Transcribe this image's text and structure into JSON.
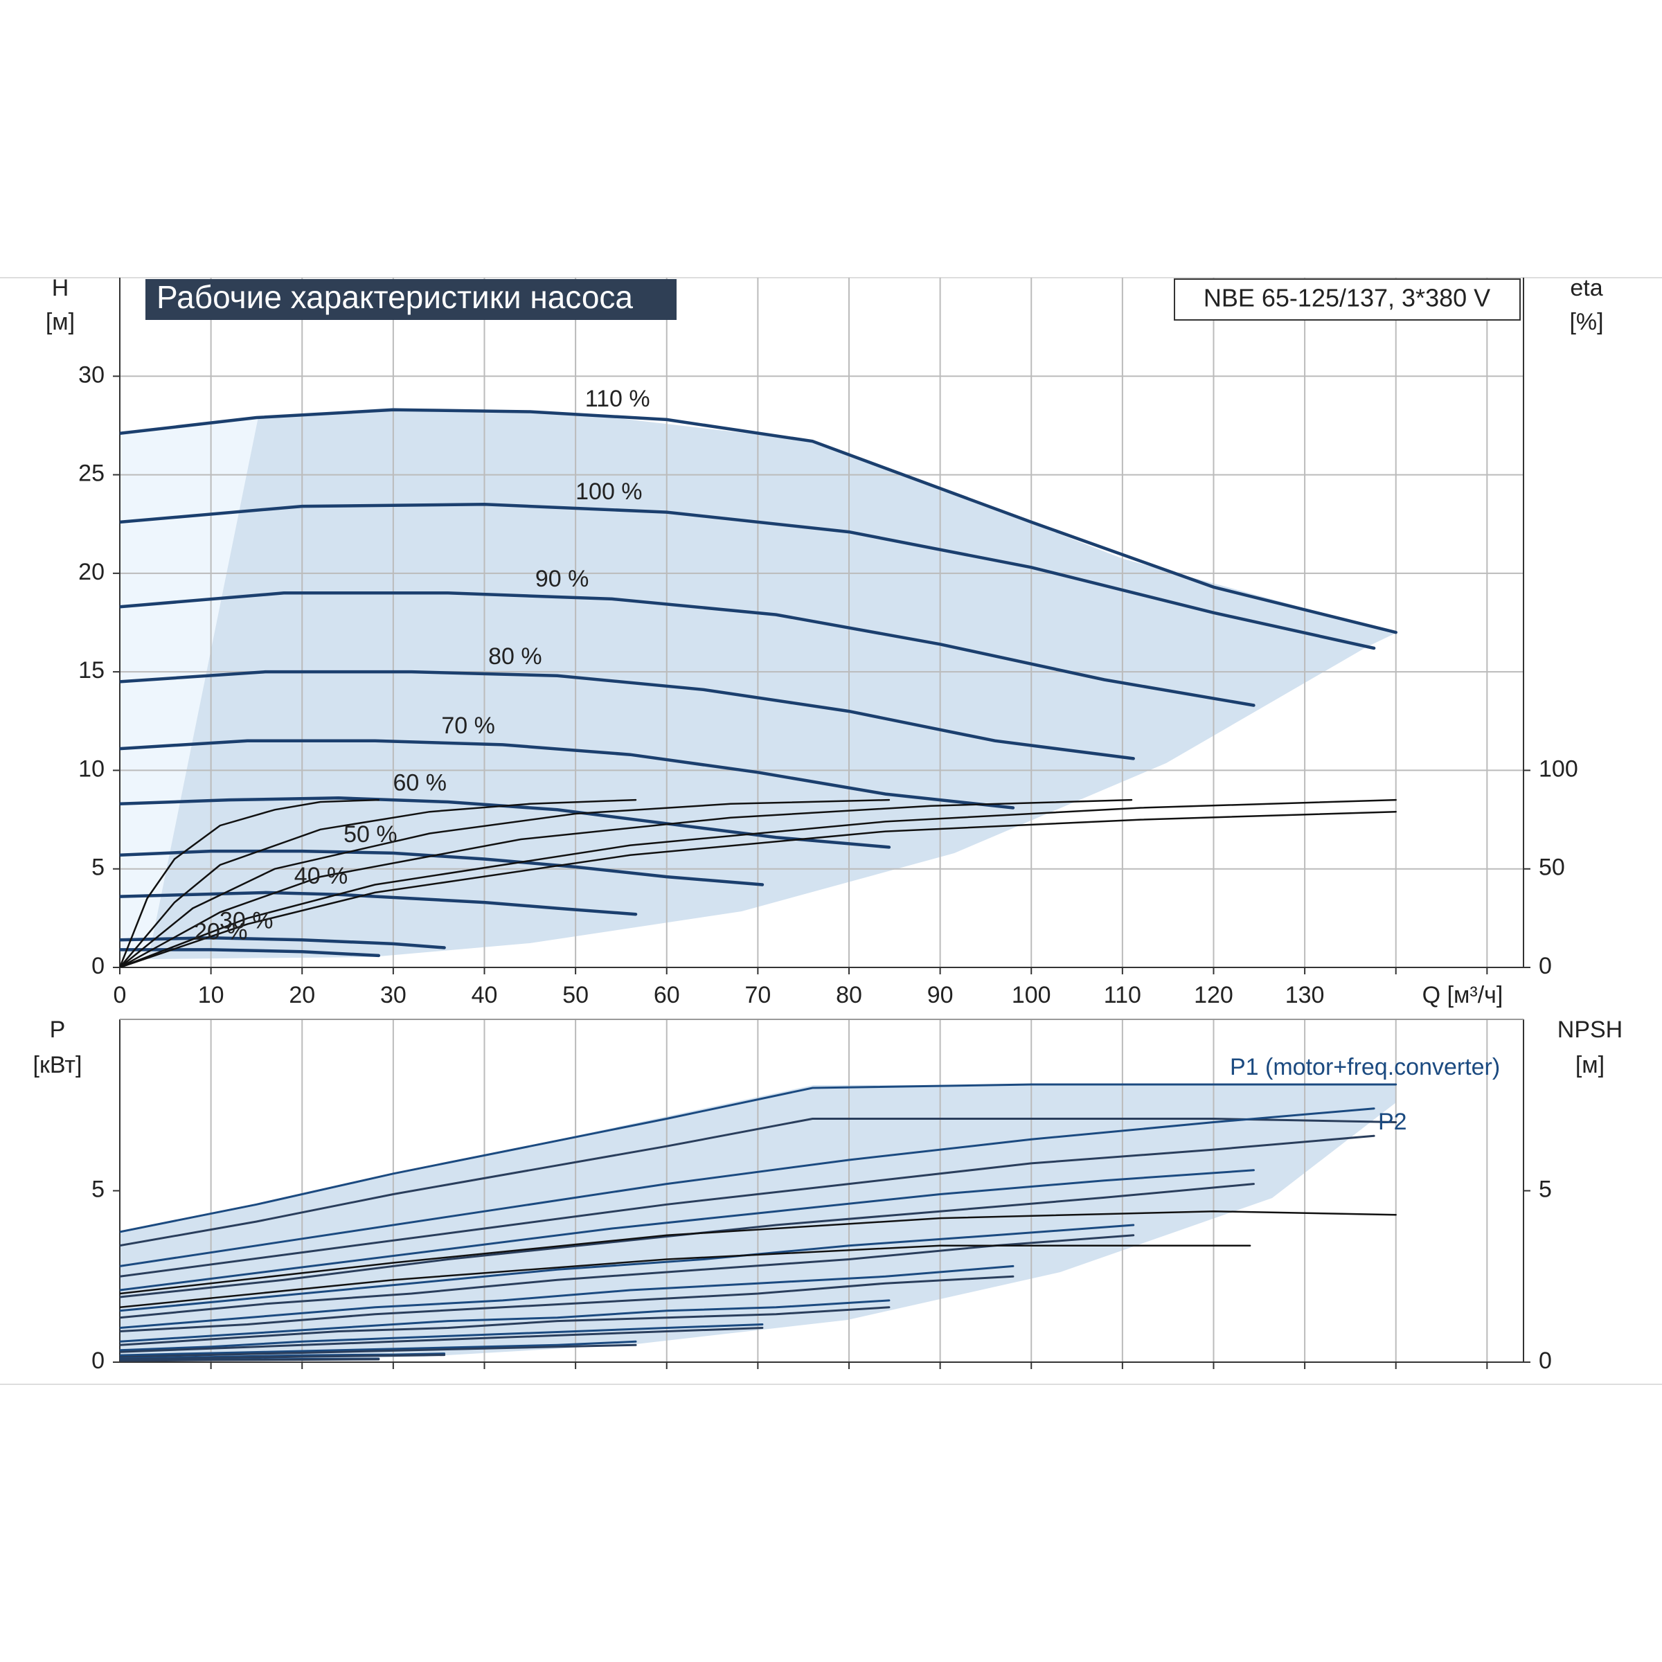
{
  "chart_data": [
    {
      "type": "line",
      "title": "Рабочие характеристики насоса",
      "annotation": "NBE 65-125/137, 3*380 V",
      "xlabel": "Q [м³/ч]",
      "ylabel": "H",
      "ylabel_unit": "[м]",
      "y2label": "eta",
      "y2label_unit": "[%]",
      "xlim": [
        0,
        154
      ],
      "xticks": [
        0,
        10,
        20,
        30,
        40,
        50,
        60,
        70,
        80,
        90,
        100,
        110,
        120,
        130
      ],
      "xgrid": [
        140,
        150
      ],
      "ylim": [
        0,
        35
      ],
      "yticks": [
        0,
        5,
        10,
        15,
        20,
        25,
        30
      ],
      "y2lim": [
        0,
        350
      ],
      "y2ticks": [
        0,
        50,
        100
      ],
      "grid": "both",
      "series": [
        {
          "name": "110 %",
          "color": "#1b3f6e",
          "x": [
            0,
            15,
            30,
            45,
            60,
            76,
            100,
            120,
            140
          ],
          "values": [
            27.1,
            27.9,
            28.3,
            28.2,
            27.8,
            26.7,
            22.6,
            19.3,
            17.0
          ]
        },
        {
          "name": "100 %",
          "color": "#1b3f6e",
          "x": [
            0,
            20,
            40,
            60,
            80,
            100,
            120,
            137.6
          ],
          "values": [
            22.6,
            23.4,
            23.5,
            23.1,
            22.1,
            20.3,
            18.0,
            16.2
          ]
        },
        {
          "name": "90 %",
          "color": "#1b3f6e",
          "x": [
            0,
            18,
            36,
            54,
            72,
            90,
            108,
            124.4
          ],
          "values": [
            18.3,
            19.0,
            19.0,
            18.7,
            17.9,
            16.4,
            14.6,
            13.3
          ]
        },
        {
          "name": "80 %",
          "color": "#1b3f6e",
          "x": [
            0,
            16,
            32,
            48,
            64,
            80,
            96,
            111.2
          ],
          "values": [
            14.5,
            15.0,
            15.0,
            14.8,
            14.1,
            13.0,
            11.5,
            10.6
          ]
        },
        {
          "name": "70 %",
          "color": "#1b3f6e",
          "x": [
            0,
            14,
            28,
            42,
            56,
            70,
            84,
            98
          ],
          "values": [
            11.1,
            11.5,
            11.5,
            11.3,
            10.8,
            9.9,
            8.8,
            8.1
          ]
        },
        {
          "name": "60 %",
          "color": "#1b3f6e",
          "x": [
            0,
            12,
            24,
            36,
            48,
            60,
            72,
            84.4
          ],
          "values": [
            8.3,
            8.5,
            8.6,
            8.4,
            8.0,
            7.3,
            6.6,
            6.1
          ]
        },
        {
          "name": "50 %",
          "color": "#1b3f6e",
          "x": [
            0,
            10,
            20,
            30,
            40,
            50,
            60,
            70.5
          ],
          "values": [
            5.7,
            5.9,
            5.9,
            5.8,
            5.5,
            5.1,
            4.6,
            4.2
          ]
        },
        {
          "name": "40 %",
          "color": "#1b3f6e",
          "x": [
            0,
            8,
            16,
            24,
            32,
            40,
            48,
            56.6
          ],
          "values": [
            3.6,
            3.7,
            3.8,
            3.7,
            3.5,
            3.3,
            3.0,
            2.7
          ]
        },
        {
          "name": "30 %",
          "color": "#1b3f6e",
          "x": [
            0,
            10,
            20,
            30,
            35.6
          ],
          "values": [
            1.4,
            1.5,
            1.4,
            1.2,
            1.0
          ]
        },
        {
          "name": "20 %",
          "color": "#1b3f6e",
          "x": [
            0,
            10,
            20,
            28.4
          ],
          "values": [
            0.9,
            0.9,
            0.8,
            0.6
          ]
        },
        {
          "color": "#111111",
          "axis": "y2",
          "x": [
            0,
            14,
            28,
            56,
            84,
            112,
            140
          ],
          "values": [
            0,
            25,
            42,
            62,
            74,
            81,
            85
          ]
        },
        {
          "color": "#111111",
          "axis": "y2",
          "x": [
            0,
            14,
            28,
            56,
            84,
            112,
            140
          ],
          "values": [
            0,
            22,
            38,
            57,
            69,
            75,
            79
          ]
        },
        {
          "color": "#111111",
          "axis": "y2",
          "x": [
            0,
            11,
            22,
            44,
            67,
            89,
            111
          ],
          "values": [
            0,
            28,
            46,
            65,
            76,
            82,
            85
          ]
        },
        {
          "color": "#111111",
          "axis": "y2",
          "x": [
            0,
            8,
            17,
            34,
            50,
            67,
            84.4
          ],
          "values": [
            0,
            30,
            50,
            68,
            78,
            83,
            85
          ]
        },
        {
          "color": "#111111",
          "axis": "y2",
          "x": [
            0,
            6,
            11,
            22,
            34,
            45,
            56.6
          ],
          "values": [
            0,
            33,
            52,
            70,
            79,
            83,
            85
          ]
        },
        {
          "color": "#111111",
          "axis": "y2",
          "x": [
            0,
            3,
            6,
            11,
            17,
            22,
            28.4
          ],
          "values": [
            0,
            35,
            55,
            72,
            80,
            84,
            85
          ]
        }
      ]
    },
    {
      "type": "line",
      "ylabel": "P",
      "ylabel_unit": "[кВт]",
      "y2label": "NPSH",
      "y2label_unit": "[м]",
      "xlim": [
        0,
        154
      ],
      "xgrid": [
        10,
        20,
        30,
        40,
        50,
        60,
        70,
        80,
        90,
        100,
        110,
        120,
        130,
        140,
        150
      ],
      "ylim": [
        0,
        10
      ],
      "yticks": [
        0,
        5
      ],
      "y2lim": [
        0,
        10
      ],
      "y2ticks": [
        0,
        5
      ],
      "grid": "x",
      "annotations": [
        {
          "text": "P1 (motor+freq.converter)",
          "color": "#1b4a80"
        },
        {
          "text": "P2",
          "color": "#1b4a80"
        }
      ],
      "series": [
        {
          "color": "#1b4a80",
          "x": [
            0,
            15,
            30,
            45,
            60,
            76,
            100,
            120,
            140
          ],
          "values": [
            3.8,
            4.6,
            5.5,
            6.3,
            7.1,
            8.0,
            8.1,
            8.1,
            8.1
          ]
        },
        {
          "color": "#2a3e5c",
          "x": [
            0,
            15,
            30,
            45,
            60,
            76,
            100,
            120,
            140
          ],
          "values": [
            3.4,
            4.1,
            4.9,
            5.6,
            6.3,
            7.1,
            7.1,
            7.1,
            7.0
          ]
        },
        {
          "color": "#1b4a80",
          "x": [
            0,
            20,
            40,
            60,
            80,
            100,
            120,
            137.6
          ],
          "values": [
            2.8,
            3.6,
            4.4,
            5.2,
            5.9,
            6.5,
            7.0,
            7.4
          ]
        },
        {
          "color": "#2a3e5c",
          "x": [
            0,
            20,
            40,
            60,
            80,
            100,
            120,
            137.6
          ],
          "values": [
            2.5,
            3.2,
            3.9,
            4.6,
            5.2,
            5.8,
            6.2,
            6.6
          ]
        },
        {
          "color": "#1b4a80",
          "x": [
            0,
            18,
            36,
            54,
            72,
            90,
            108,
            124.4
          ],
          "values": [
            2.1,
            2.7,
            3.3,
            3.9,
            4.4,
            4.9,
            5.3,
            5.6
          ]
        },
        {
          "color": "#2a3e5c",
          "x": [
            0,
            18,
            36,
            54,
            72,
            90,
            108,
            124.4
          ],
          "values": [
            1.9,
            2.4,
            3.0,
            3.5,
            4.0,
            4.4,
            4.8,
            5.2
          ]
        },
        {
          "color": "#1b4a80",
          "x": [
            0,
            16,
            32,
            48,
            64,
            80,
            96,
            111.2
          ],
          "values": [
            1.5,
            1.9,
            2.3,
            2.7,
            3.0,
            3.4,
            3.7,
            4.0
          ]
        },
        {
          "color": "#2a3e5c",
          "x": [
            0,
            16,
            32,
            48,
            64,
            80,
            96,
            111.2
          ],
          "values": [
            1.3,
            1.7,
            2.0,
            2.4,
            2.7,
            3.0,
            3.4,
            3.7
          ]
        },
        {
          "color": "#1b4a80",
          "x": [
            0,
            14,
            28,
            42,
            56,
            70,
            84,
            98
          ],
          "values": [
            1.0,
            1.3,
            1.6,
            1.8,
            2.1,
            2.3,
            2.5,
            2.8
          ]
        },
        {
          "color": "#2a3e5c",
          "x": [
            0,
            14,
            28,
            42,
            56,
            70,
            84,
            98
          ],
          "values": [
            0.9,
            1.1,
            1.4,
            1.6,
            1.8,
            2.0,
            2.3,
            2.5
          ]
        },
        {
          "color": "#1b4a80",
          "x": [
            0,
            12,
            24,
            36,
            48,
            60,
            72,
            84.4
          ],
          "values": [
            0.6,
            0.8,
            1.0,
            1.2,
            1.3,
            1.5,
            1.6,
            1.8
          ]
        },
        {
          "color": "#2a3e5c",
          "x": [
            0,
            12,
            24,
            36,
            48,
            60,
            72,
            84.4
          ],
          "values": [
            0.5,
            0.7,
            0.9,
            1.0,
            1.2,
            1.3,
            1.4,
            1.6
          ]
        },
        {
          "color": "#1b4a80",
          "x": [
            0,
            10,
            20,
            30,
            40,
            50,
            60,
            70.5
          ],
          "values": [
            0.35,
            0.45,
            0.6,
            0.7,
            0.8,
            0.9,
            1.0,
            1.1
          ]
        },
        {
          "color": "#2a3e5c",
          "x": [
            0,
            10,
            20,
            30,
            40,
            50,
            60,
            70.5
          ],
          "values": [
            0.3,
            0.4,
            0.5,
            0.6,
            0.7,
            0.8,
            0.9,
            1.0
          ]
        },
        {
          "color": "#1b4a80",
          "x": [
            0,
            8,
            16,
            24,
            32,
            40,
            48,
            56.6
          ],
          "values": [
            0.2,
            0.25,
            0.3,
            0.35,
            0.4,
            0.45,
            0.5,
            0.6
          ]
        },
        {
          "color": "#2a3e5c",
          "x": [
            0,
            8,
            16,
            24,
            32,
            40,
            48,
            56.6
          ],
          "values": [
            0.15,
            0.2,
            0.25,
            0.3,
            0.35,
            0.4,
            0.45,
            0.5
          ]
        },
        {
          "color": "#1b4a80",
          "x": [
            0,
            10,
            20,
            30,
            35.6
          ],
          "values": [
            0.1,
            0.15,
            0.2,
            0.22,
            0.25
          ]
        },
        {
          "color": "#2a3e5c",
          "x": [
            0,
            10,
            20,
            30,
            35.6
          ],
          "values": [
            0.08,
            0.12,
            0.16,
            0.19,
            0.21
          ]
        },
        {
          "color": "#1b4a80",
          "x": [
            0,
            10,
            20,
            28.4
          ],
          "values": [
            0.05,
            0.07,
            0.09,
            0.1
          ]
        },
        {
          "color": "#2a3e5c",
          "x": [
            0,
            10,
            20,
            28.4
          ],
          "values": [
            0.04,
            0.06,
            0.07,
            0.08
          ]
        },
        {
          "color": "#111111",
          "axis": "y2",
          "x": [
            0,
            30,
            60,
            90,
            120,
            140
          ],
          "values": [
            2.0,
            2.9,
            3.7,
            4.2,
            4.4,
            4.3
          ]
        },
        {
          "color": "#111111",
          "axis": "y2",
          "x": [
            0,
            30,
            60,
            90,
            124
          ],
          "values": [
            1.6,
            2.4,
            3.0,
            3.4,
            3.4
          ]
        }
      ]
    }
  ]
}
